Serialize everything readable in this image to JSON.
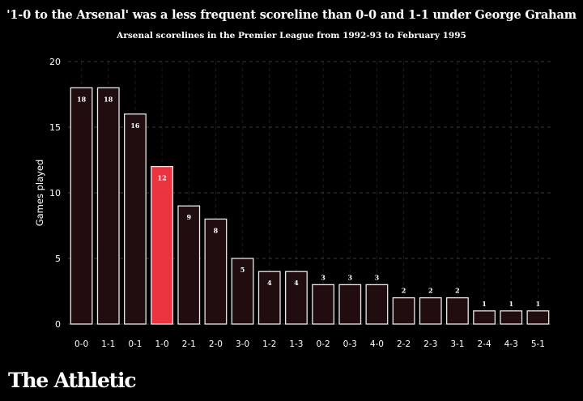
{
  "chart_data": {
    "type": "bar",
    "title": "'1-0 to the Arsenal' was a less frequent scoreline than 0-0 and 1-1 under George Graham",
    "subtitle": "Arsenal scorelines in the Premier League from 1992-93 to February 1995",
    "xlabel": "",
    "ylabel": "Games played",
    "ylim": [
      0,
      20
    ],
    "yticks": [
      0,
      5,
      10,
      15,
      20
    ],
    "grid": true,
    "categories": [
      "0-0",
      "1-1",
      "0-1",
      "1-0",
      "2-1",
      "2-0",
      "3-0",
      "1-2",
      "1-3",
      "0-2",
      "0-3",
      "4-0",
      "2-2",
      "2-3",
      "3-1",
      "2-4",
      "4-3",
      "5-1"
    ],
    "values": [
      18,
      18,
      16,
      12,
      9,
      8,
      5,
      4,
      4,
      3,
      3,
      3,
      2,
      2,
      2,
      1,
      1,
      1
    ],
    "highlight": "1-0",
    "colors": {
      "bar_fill": "#210d10",
      "bar_stroke": "#e8e8e8",
      "highlight_fill": "#ec3441",
      "grid": "#3a3a3a",
      "text": "#ffffff",
      "background": "#000000"
    }
  },
  "brand": "The Athletic"
}
